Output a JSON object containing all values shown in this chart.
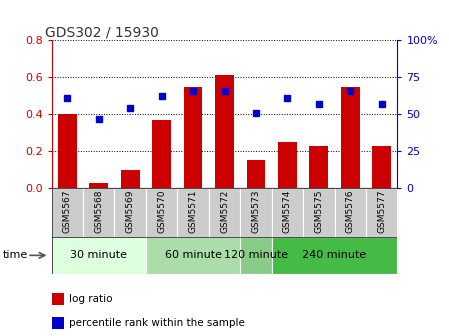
{
  "title": "GDS302 / 15930",
  "samples": [
    "GSM5567",
    "GSM5568",
    "GSM5569",
    "GSM5570",
    "GSM5571",
    "GSM5572",
    "GSM5573",
    "GSM5574",
    "GSM5575",
    "GSM5576",
    "GSM5577"
  ],
  "log_ratio": [
    0.4,
    0.03,
    0.1,
    0.37,
    0.55,
    0.61,
    0.15,
    0.25,
    0.23,
    0.55,
    0.23
  ],
  "percentile_pct": [
    61,
    47,
    54,
    62,
    66,
    66,
    51,
    61,
    57,
    66,
    57
  ],
  "bar_color": "#cc0000",
  "dot_color": "#0000cc",
  "groups": [
    {
      "label": "30 minute",
      "start": 0,
      "end": 3,
      "color": "#ddffdd"
    },
    {
      "label": "60 minute",
      "start": 3,
      "end": 6,
      "color": "#aaddaa"
    },
    {
      "label": "120 minute",
      "start": 6,
      "end": 7,
      "color": "#88cc88"
    },
    {
      "label": "240 minute",
      "start": 7,
      "end": 11,
      "color": "#44bb44"
    }
  ],
  "ylim_left": [
    0,
    0.8
  ],
  "ylim_right": [
    0,
    100
  ],
  "yticks_left": [
    0,
    0.2,
    0.4,
    0.6,
    0.8
  ],
  "yticks_right": [
    0,
    25,
    50,
    75,
    100
  ],
  "ytick_labels_right": [
    "0",
    "25",
    "50",
    "75",
    "100%"
  ],
  "bar_width": 0.6,
  "left_tick_color": "#cc0000",
  "right_tick_color": "#0000cc",
  "gray_band_color": "#cccccc",
  "grid_color": "black",
  "legend_items": [
    {
      "label": "log ratio",
      "color": "#cc0000"
    },
    {
      "label": "percentile rank within the sample",
      "color": "#0000cc"
    }
  ]
}
